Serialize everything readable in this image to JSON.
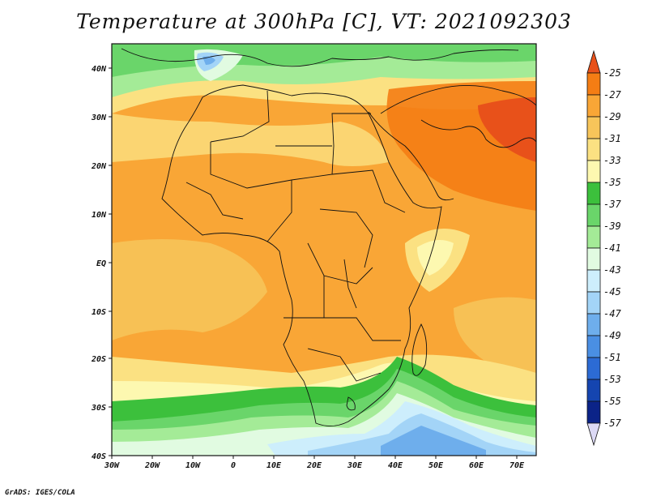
{
  "title": "Temperature at 300hPa [C], VT: 2021092303",
  "credit": "GrADS: IGES/COLA",
  "map": {
    "lat_labels": [
      "40N",
      "30N",
      "20N",
      "10N",
      "EQ",
      "10S",
      "20S",
      "30S",
      "40S"
    ],
    "lon_labels": [
      "30W",
      "20W",
      "10W",
      "0",
      "10E",
      "20E",
      "30E",
      "40E",
      "50E",
      "60E",
      "70E"
    ]
  },
  "colorbar": {
    "labels": [
      "-25",
      "-27",
      "-29",
      "-31",
      "-33",
      "-35",
      "-37",
      "-39",
      "-41",
      "-43",
      "-45",
      "-47",
      "-49",
      "-51",
      "-53",
      "-55",
      "-57"
    ],
    "colors": [
      "#e8511a",
      "#f47d14",
      "#f9a636",
      "#f7c55a",
      "#fbe182",
      "#fdf8b0",
      "#3cc03c",
      "#6ad56a",
      "#a4eb97",
      "#e1fbe1",
      "#cdeefc",
      "#a3d4f7",
      "#6eaeec",
      "#4a8fe3",
      "#2c6bd4",
      "#1545b0",
      "#0b2388",
      "#dcd9f5"
    ]
  }
}
